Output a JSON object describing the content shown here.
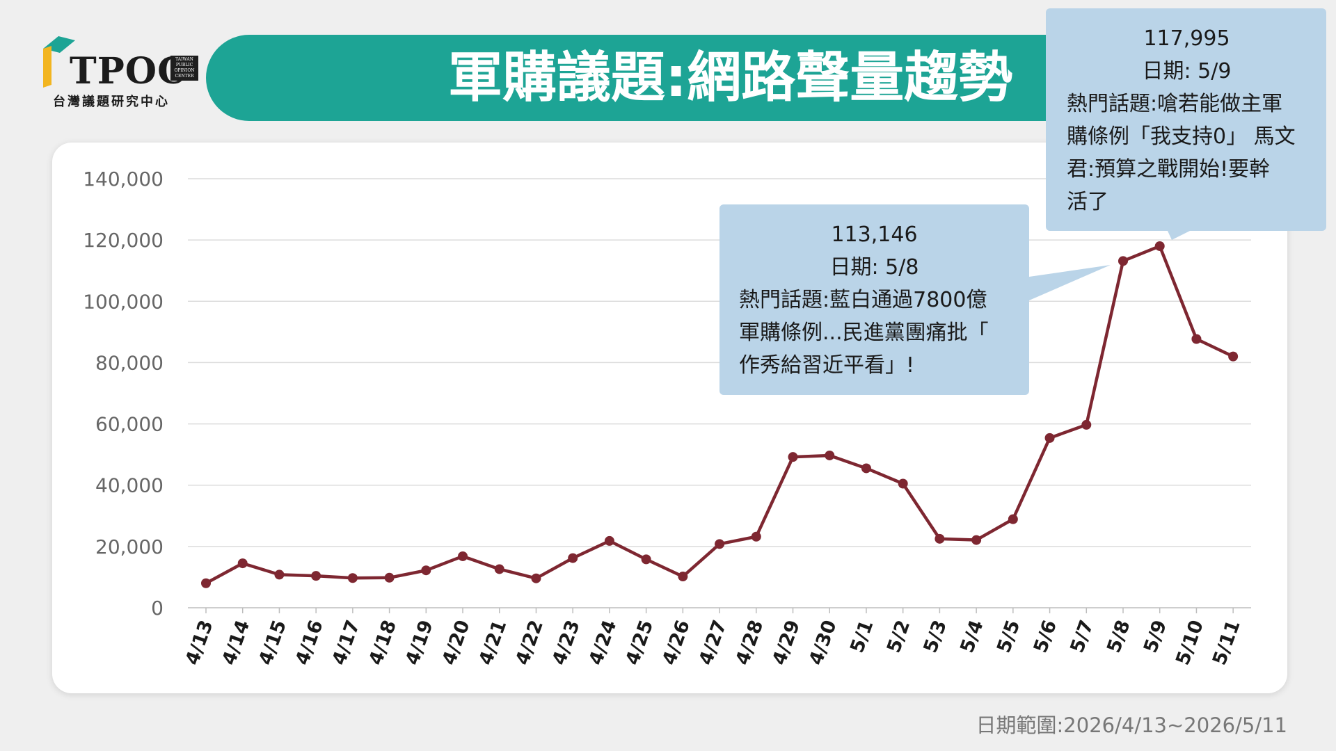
{
  "brand": {
    "logo_text": "TPOC",
    "logo_small_lines": [
      "TAIWAN",
      "PUBLIC",
      "OPINION",
      "CENTER"
    ],
    "logo_subtitle": "台灣議題研究中心",
    "colors": {
      "green": "#1da495",
      "yellow": "#f2b520",
      "red": "#b8202b",
      "dark": "#1e1e1e"
    }
  },
  "title": "軍購議題:網路聲量趨勢",
  "chart_data": {
    "type": "line",
    "title": "軍購議題:網路聲量趨勢",
    "x": [
      "4/13",
      "4/14",
      "4/15",
      "4/16",
      "4/17",
      "4/18",
      "4/19",
      "4/20",
      "4/21",
      "4/22",
      "4/23",
      "4/24",
      "4/25",
      "4/26",
      "4/27",
      "4/28",
      "4/29",
      "4/30",
      "5/1",
      "5/2",
      "5/3",
      "5/4",
      "5/5",
      "5/6",
      "5/7",
      "5/8",
      "5/9",
      "5/10",
      "5/11"
    ],
    "series": [
      {
        "values": [
          8000,
          14500,
          10800,
          10400,
          9700,
          9800,
          12200,
          16800,
          12600,
          9600,
          16200,
          21800,
          15800,
          10200,
          20800,
          23200,
          49200,
          49700,
          45500,
          40500,
          22500,
          22100,
          28900,
          55400,
          59700,
          113146,
          117995,
          87700,
          82000
        ],
        "color": "#7e2731"
      }
    ],
    "yticks": [
      "0",
      "20,000",
      "40,000",
      "60,000",
      "80,000",
      "100,000",
      "120,000",
      "140,000"
    ],
    "ylim": [
      0,
      140000
    ],
    "grid": true,
    "xlabel": "",
    "ylabel": ""
  },
  "tooltips": [
    {
      "value": "113,146",
      "date": "日期: 5/8",
      "topic_lines": [
        "熱門話題:藍白通過7800億",
        "軍購條例...民進黨團痛批「",
        "作秀給習近平看」!"
      ]
    },
    {
      "value": "117,995",
      "date": "日期: 5/9",
      "topic_lines": [
        "熱門話題:嗆若能做主軍",
        "購條例「我支持0」 馬文",
        "君:預算之戰開始!要幹",
        "活了"
      ]
    }
  ],
  "footer": {
    "date_range": "日期範圍:2026/4/13~2026/5/11"
  }
}
